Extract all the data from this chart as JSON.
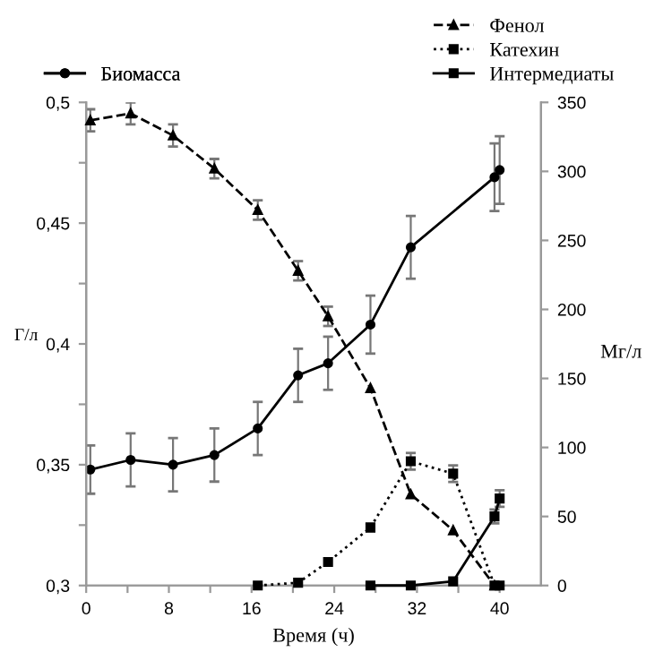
{
  "chart_data": {
    "type": "line",
    "xlabel": "Время (ч)",
    "ylabel": "Г/л",
    "y2label": "Мг/л",
    "xlim": [
      0,
      44
    ],
    "xticks": [
      0,
      {
        "value": 4,
        "label": null
      },
      8,
      {
        "value": 12,
        "label": null
      },
      16,
      {
        "value": 20,
        "label": null
      },
      24,
      {
        "value": 28,
        "label": null
      },
      32,
      {
        "value": 36,
        "label": null
      },
      40
    ],
    "ylim": [
      0.3,
      0.5
    ],
    "yticks": [
      {
        "value": 0.3,
        "label": "0,3"
      },
      {
        "value": 0.325,
        "label": null
      },
      {
        "value": 0.35,
        "label": "0,35"
      },
      {
        "value": 0.375,
        "label": null
      },
      {
        "value": 0.4,
        "label": "0,4"
      },
      {
        "value": 0.425,
        "label": null
      },
      {
        "value": 0.45,
        "label": "0,45"
      },
      {
        "value": 0.475,
        "label": null
      },
      {
        "value": 0.5,
        "label": "0,5"
      }
    ],
    "y2lim": [
      0,
      350
    ],
    "y2ticks": [
      0,
      50,
      100,
      150,
      200,
      250,
      300,
      350
    ],
    "grid": false,
    "legend": "top",
    "series": [
      {
        "name": "Биомасса",
        "color": "#000000",
        "marker": "circle",
        "line_style": "solid",
        "x": [
          0.4,
          4.3,
          8.4,
          12.4,
          16.6,
          20.5,
          23.4,
          27.5,
          31.4,
          39.5,
          40
        ],
        "values": [
          0.348,
          0.352,
          0.35,
          0.354,
          0.365,
          0.387,
          0.392,
          0.408,
          0.44,
          0.469,
          0.472
        ],
        "errors": [
          0.01,
          0.011,
          0.011,
          0.011,
          0.011,
          0.011,
          0.011,
          0.012,
          0.013,
          0.014,
          0.014
        ]
      },
      {
        "name": "Фенол",
        "color": "#000000",
        "marker": "triangle",
        "line_style": "dashed",
        "axis": "y2",
        "x": [
          0.4,
          4.3,
          8.4,
          12.4,
          16.6,
          20.5,
          23.4,
          27.5,
          31.4,
          35.5,
          39.5
        ],
        "values": [
          337,
          342,
          326,
          302,
          272,
          228,
          195,
          143,
          66,
          40,
          0
        ],
        "errors": [
          8,
          8,
          8,
          7,
          7,
          7,
          7,
          null,
          null,
          null,
          null
        ]
      },
      {
        "name": "Катехин",
        "color": "#000000",
        "marker": "square",
        "line_style": "dotted",
        "axis": "y2",
        "x": [
          16.6,
          20.5,
          23.4,
          27.5,
          31.4,
          35.5,
          39.5,
          40
        ],
        "values": [
          0,
          2,
          17,
          42,
          90,
          81,
          0,
          0
        ],
        "errors": [
          null,
          null,
          null,
          3,
          6,
          6,
          null,
          null
        ]
      },
      {
        "name": "Интермедиаты",
        "color": "#000000",
        "marker": "square",
        "line_style": "solid",
        "axis": "y2",
        "x": [
          27.5,
          31.4,
          35.5,
          39.5,
          40
        ],
        "values": [
          0,
          0,
          3,
          50,
          63
        ],
        "errors": [
          null,
          null,
          null,
          5,
          6
        ]
      }
    ]
  }
}
